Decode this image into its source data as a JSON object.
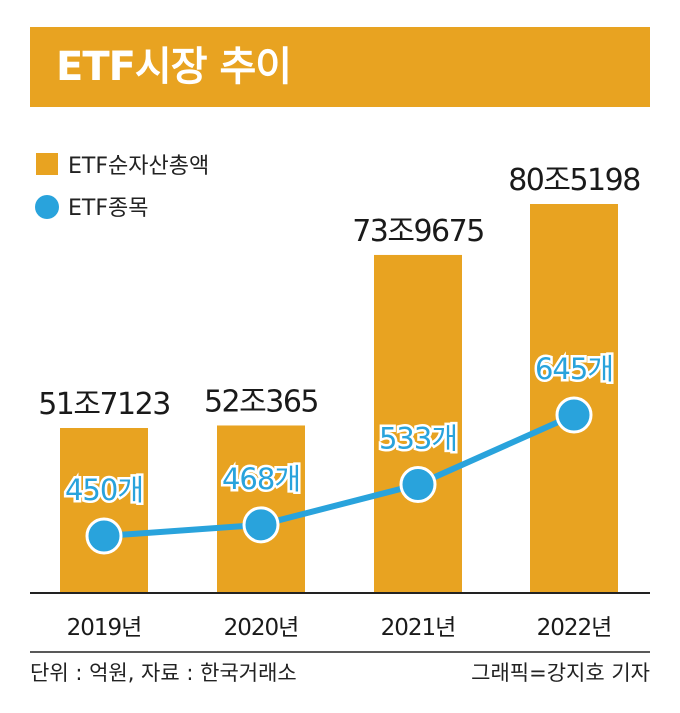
{
  "title": "ETF시장 추이",
  "footer": {
    "source": "단위 : 억원, 자료 : 한국거래소",
    "credit": "그래픽=강지호 기자"
  },
  "colors": {
    "bar": "#e8a321",
    "line": "#29a3dc",
    "title_bg": "#e8a321"
  },
  "chart_data": {
    "type": "bar",
    "categories": [
      "2019년",
      "2020년",
      "2021년",
      "2022년"
    ],
    "legend": [
      "ETF순자산총액",
      "ETF종목"
    ],
    "series": [
      {
        "name": "ETF순자산총액",
        "type": "bar",
        "values": [
          517123,
          520365,
          739675,
          805198
        ],
        "labels": [
          "51조7123",
          "52조365",
          "73조9675",
          "80조5198"
        ]
      },
      {
        "name": "ETF종목",
        "type": "line",
        "values": [
          450,
          468,
          533,
          645
        ],
        "labels": [
          "450개",
          "468개",
          "533개",
          "645개"
        ]
      }
    ]
  }
}
